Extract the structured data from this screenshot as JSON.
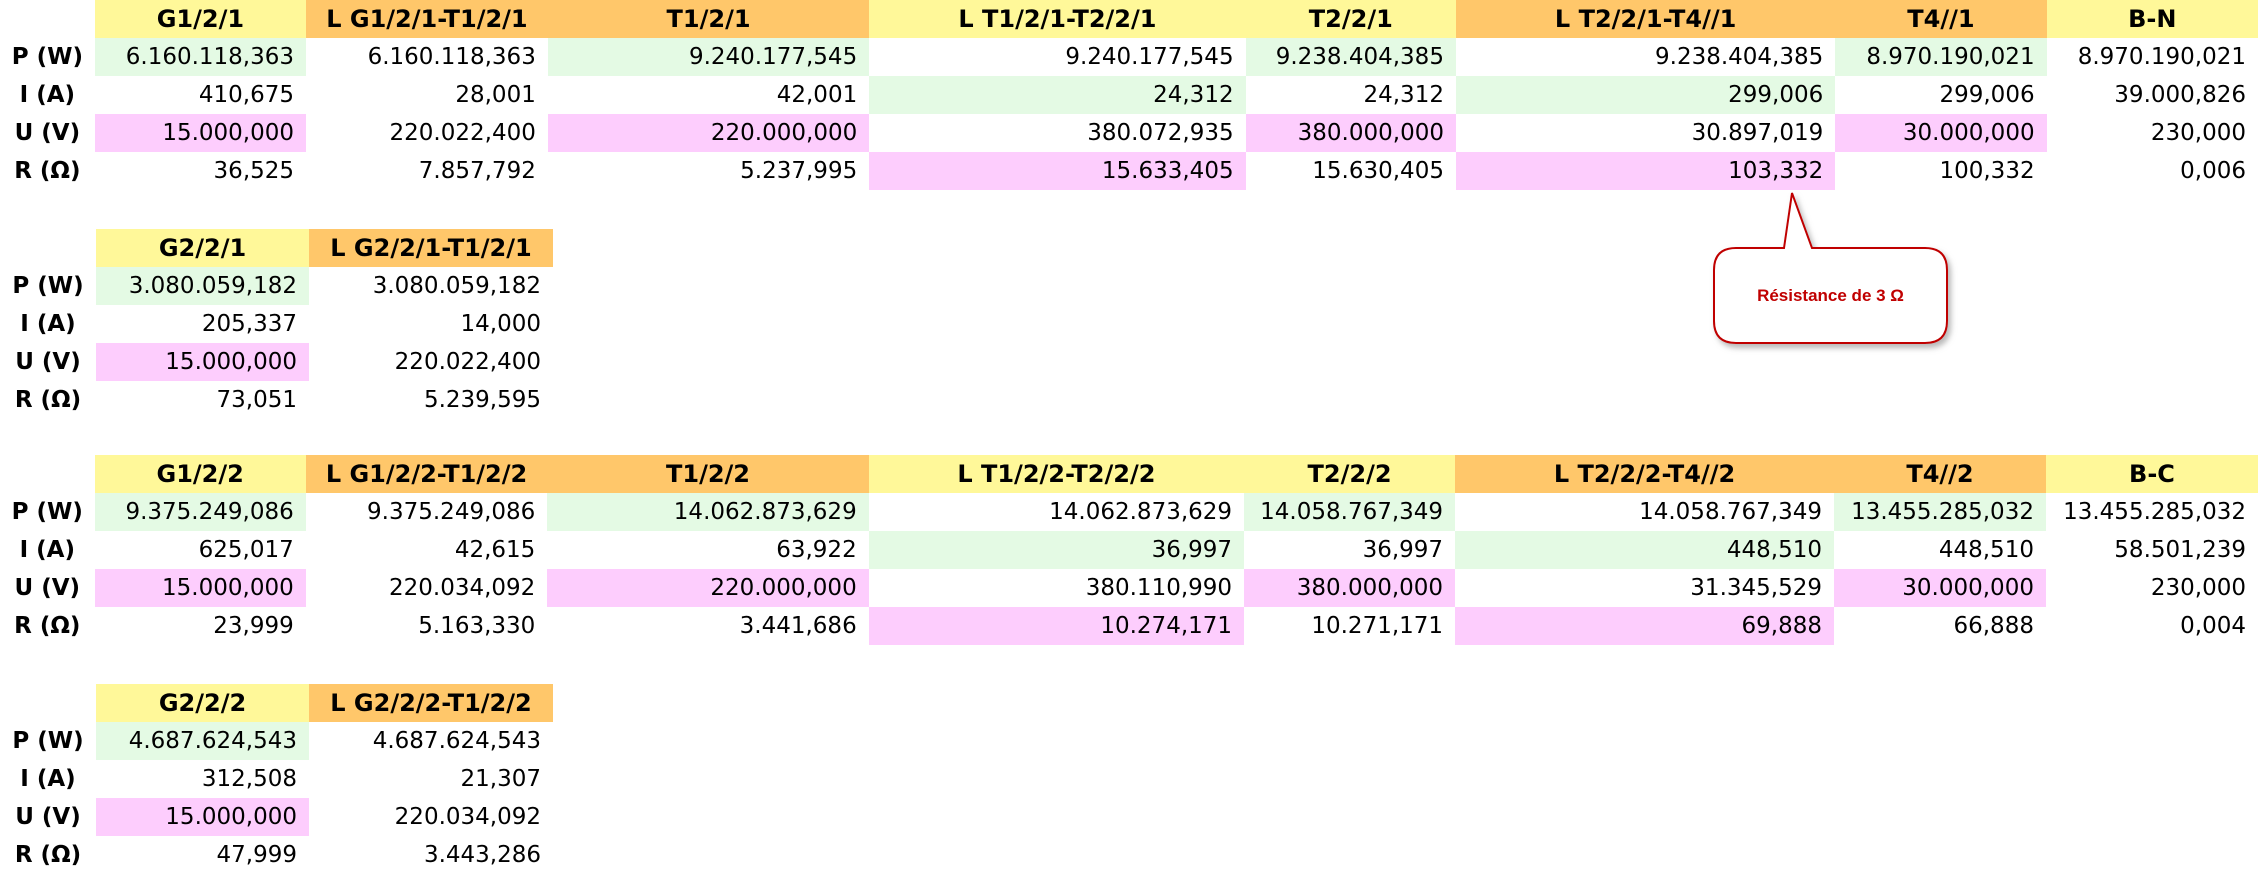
{
  "row_labels": [
    "P (W)",
    "I (A)",
    "U (V)",
    "R (Ω)"
  ],
  "blocks": {
    "b1": {
      "headers": [
        "G1/2/1",
        "L G1/2/1-T1/2/1",
        "T1/2/1",
        "L T1/2/1-T2/2/1",
        "T2/2/1",
        "L T2/2/1-T4//1",
        "T4//1",
        "B-N"
      ],
      "rows": [
        [
          "6.160.118,363",
          "6.160.118,363",
          "9.240.177,545",
          "9.240.177,545",
          "9.238.404,385",
          "9.238.404,385",
          "8.970.190,021",
          "8.970.190,021"
        ],
        [
          "410,675",
          "28,001",
          "42,001",
          "24,312",
          "24,312",
          "299,006",
          "299,006",
          "39.000,826"
        ],
        [
          "15.000,000",
          "220.022,400",
          "220.000,000",
          "380.072,935",
          "380.000,000",
          "30.897,019",
          "30.000,000",
          "230,000"
        ],
        [
          "36,525",
          "7.857,792",
          "5.237,995",
          "15.633,405",
          "15.630,405",
          "103,332",
          "100,332",
          "0,006"
        ]
      ]
    },
    "b2": {
      "headers": [
        "G2/2/1",
        "L G2/2/1-T1/2/1"
      ],
      "rows": [
        [
          "3.080.059,182",
          "3.080.059,182"
        ],
        [
          "205,337",
          "14,000"
        ],
        [
          "15.000,000",
          "220.022,400"
        ],
        [
          "73,051",
          "5.239,595"
        ]
      ]
    },
    "b3": {
      "headers": [
        "G1/2/2",
        "L G1/2/2-T1/2/2",
        "T1/2/2",
        "L T1/2/2-T2/2/2",
        "T2/2/2",
        "L T2/2/2-T4//2",
        "T4//2",
        "B-C"
      ],
      "rows": [
        [
          "9.375.249,086",
          "9.375.249,086",
          "14.062.873,629",
          "14.062.873,629",
          "14.058.767,349",
          "14.058.767,349",
          "13.455.285,032",
          "13.455.285,032"
        ],
        [
          "625,017",
          "42,615",
          "63,922",
          "36,997",
          "36,997",
          "448,510",
          "448,510",
          "58.501,239"
        ],
        [
          "15.000,000",
          "220.034,092",
          "220.000,000",
          "380.110,990",
          "380.000,000",
          "31.345,529",
          "30.000,000",
          "230,000"
        ],
        [
          "23,999",
          "5.163,330",
          "3.441,686",
          "10.274,171",
          "10.271,171",
          "69,888",
          "66,888",
          "0,004"
        ]
      ]
    },
    "b4": {
      "headers": [
        "G2/2/2",
        "L G2/2/2-T1/2/2"
      ],
      "rows": [
        [
          "4.687.624,543",
          "4.687.624,543"
        ],
        [
          "312,508",
          "21,307"
        ],
        [
          "15.000,000",
          "220.034,092"
        ],
        [
          "47,999",
          "3.443,286"
        ]
      ]
    }
  },
  "callout": {
    "text": "Résistance de 3 Ω"
  },
  "colors": {
    "header_yellow": "#fff899",
    "header_orange": "#ffc76a",
    "green": "#e4fae4",
    "pink": "#fdcdfd",
    "callout_text": "#c00000",
    "callout_border": "#c00000"
  }
}
